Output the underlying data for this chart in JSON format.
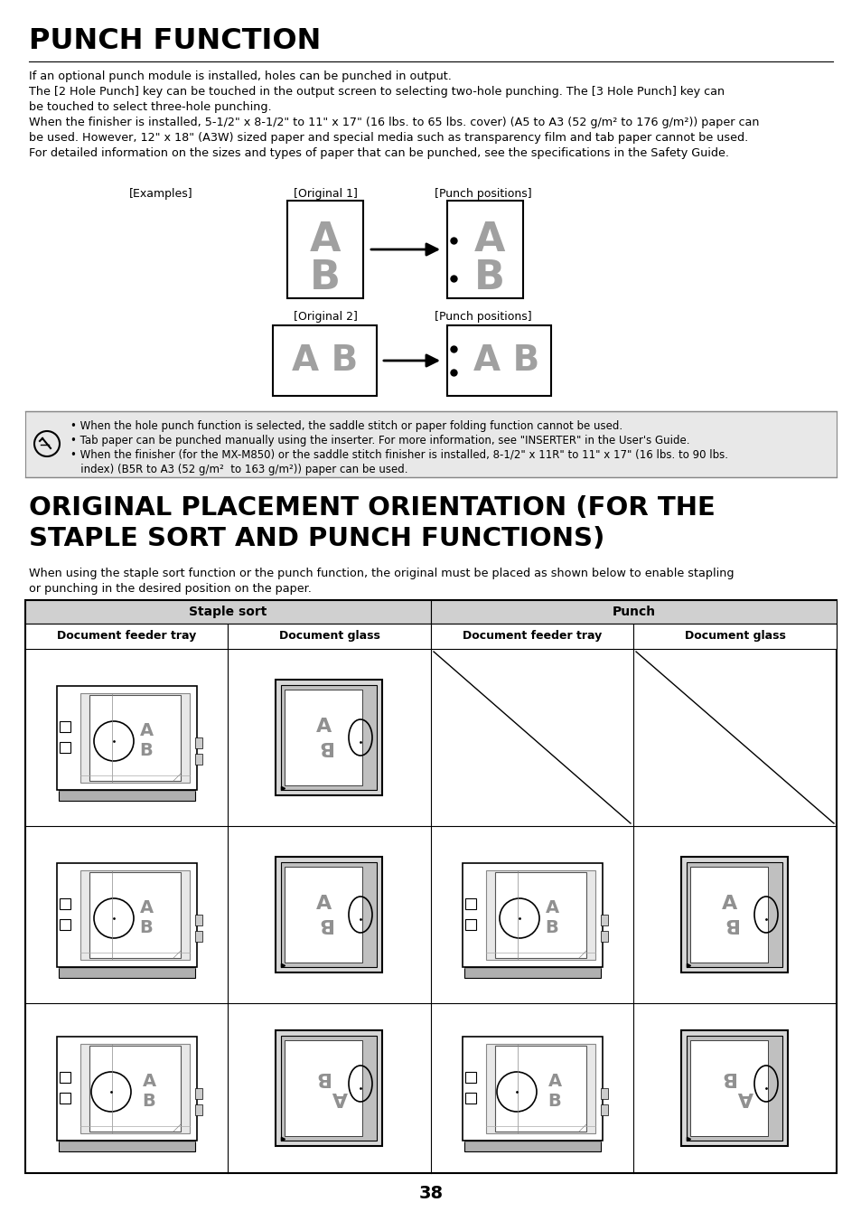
{
  "title1": "PUNCH FUNCTION",
  "body1_lines": [
    "If an optional punch module is installed, holes can be punched in output.",
    "The [2 Hole Punch] key can be touched in the output screen to selecting two-hole punching. The [3 Hole Punch] key can",
    "be touched to select three-hole punching.",
    "When the finisher is installed, 5-1/2\" x 8-1/2\" to 11\" x 17\" (16 lbs. to 65 lbs. cover) (A5 to A3 (52 g/m² to 176 g/m²)) paper can",
    "be used. However, 12\" x 18\" (A3W) sized paper and special media such as transparency film and tab paper cannot be used.",
    "For detailed information on the sizes and types of paper that can be punched, see the specifications in the Safety Guide."
  ],
  "note_lines": [
    "• When the hole punch function is selected, the saddle stitch or paper folding function cannot be used.",
    "• Tab paper can be punched manually using the inserter. For more information, see \"INSERTER\" in the User's Guide.",
    "• When the finisher (for the MX-M850) or the saddle stitch finisher is installed, 8-1/2\" x 11R\" to 11\" x 17\" (16 lbs. to 90 lbs.",
    "   index) (B5R to A3 (52 g/m²  to 163 g/m²)) paper can be used."
  ],
  "title2_line1": "ORIGINAL PLACEMENT ORIENTATION (FOR THE",
  "title2_line2": "STAPLE SORT AND PUNCH FUNCTIONS)",
  "body2_lines": [
    "When using the staple sort function or the punch function, the original must be placed as shown below to enable stapling",
    "or punching in the desired position on the paper."
  ],
  "tbl_staple": "Staple sort",
  "tbl_punch": "Punch",
  "tbl_doc_feeder": "Document feeder tray",
  "tbl_doc_glass": "Document glass",
  "page_number": "38",
  "bg_color": "#ffffff",
  "text_color": "#000000",
  "gray_color": "#888888",
  "note_bg": "#e0e0e0",
  "hdr_bg": "#d0d0d0"
}
